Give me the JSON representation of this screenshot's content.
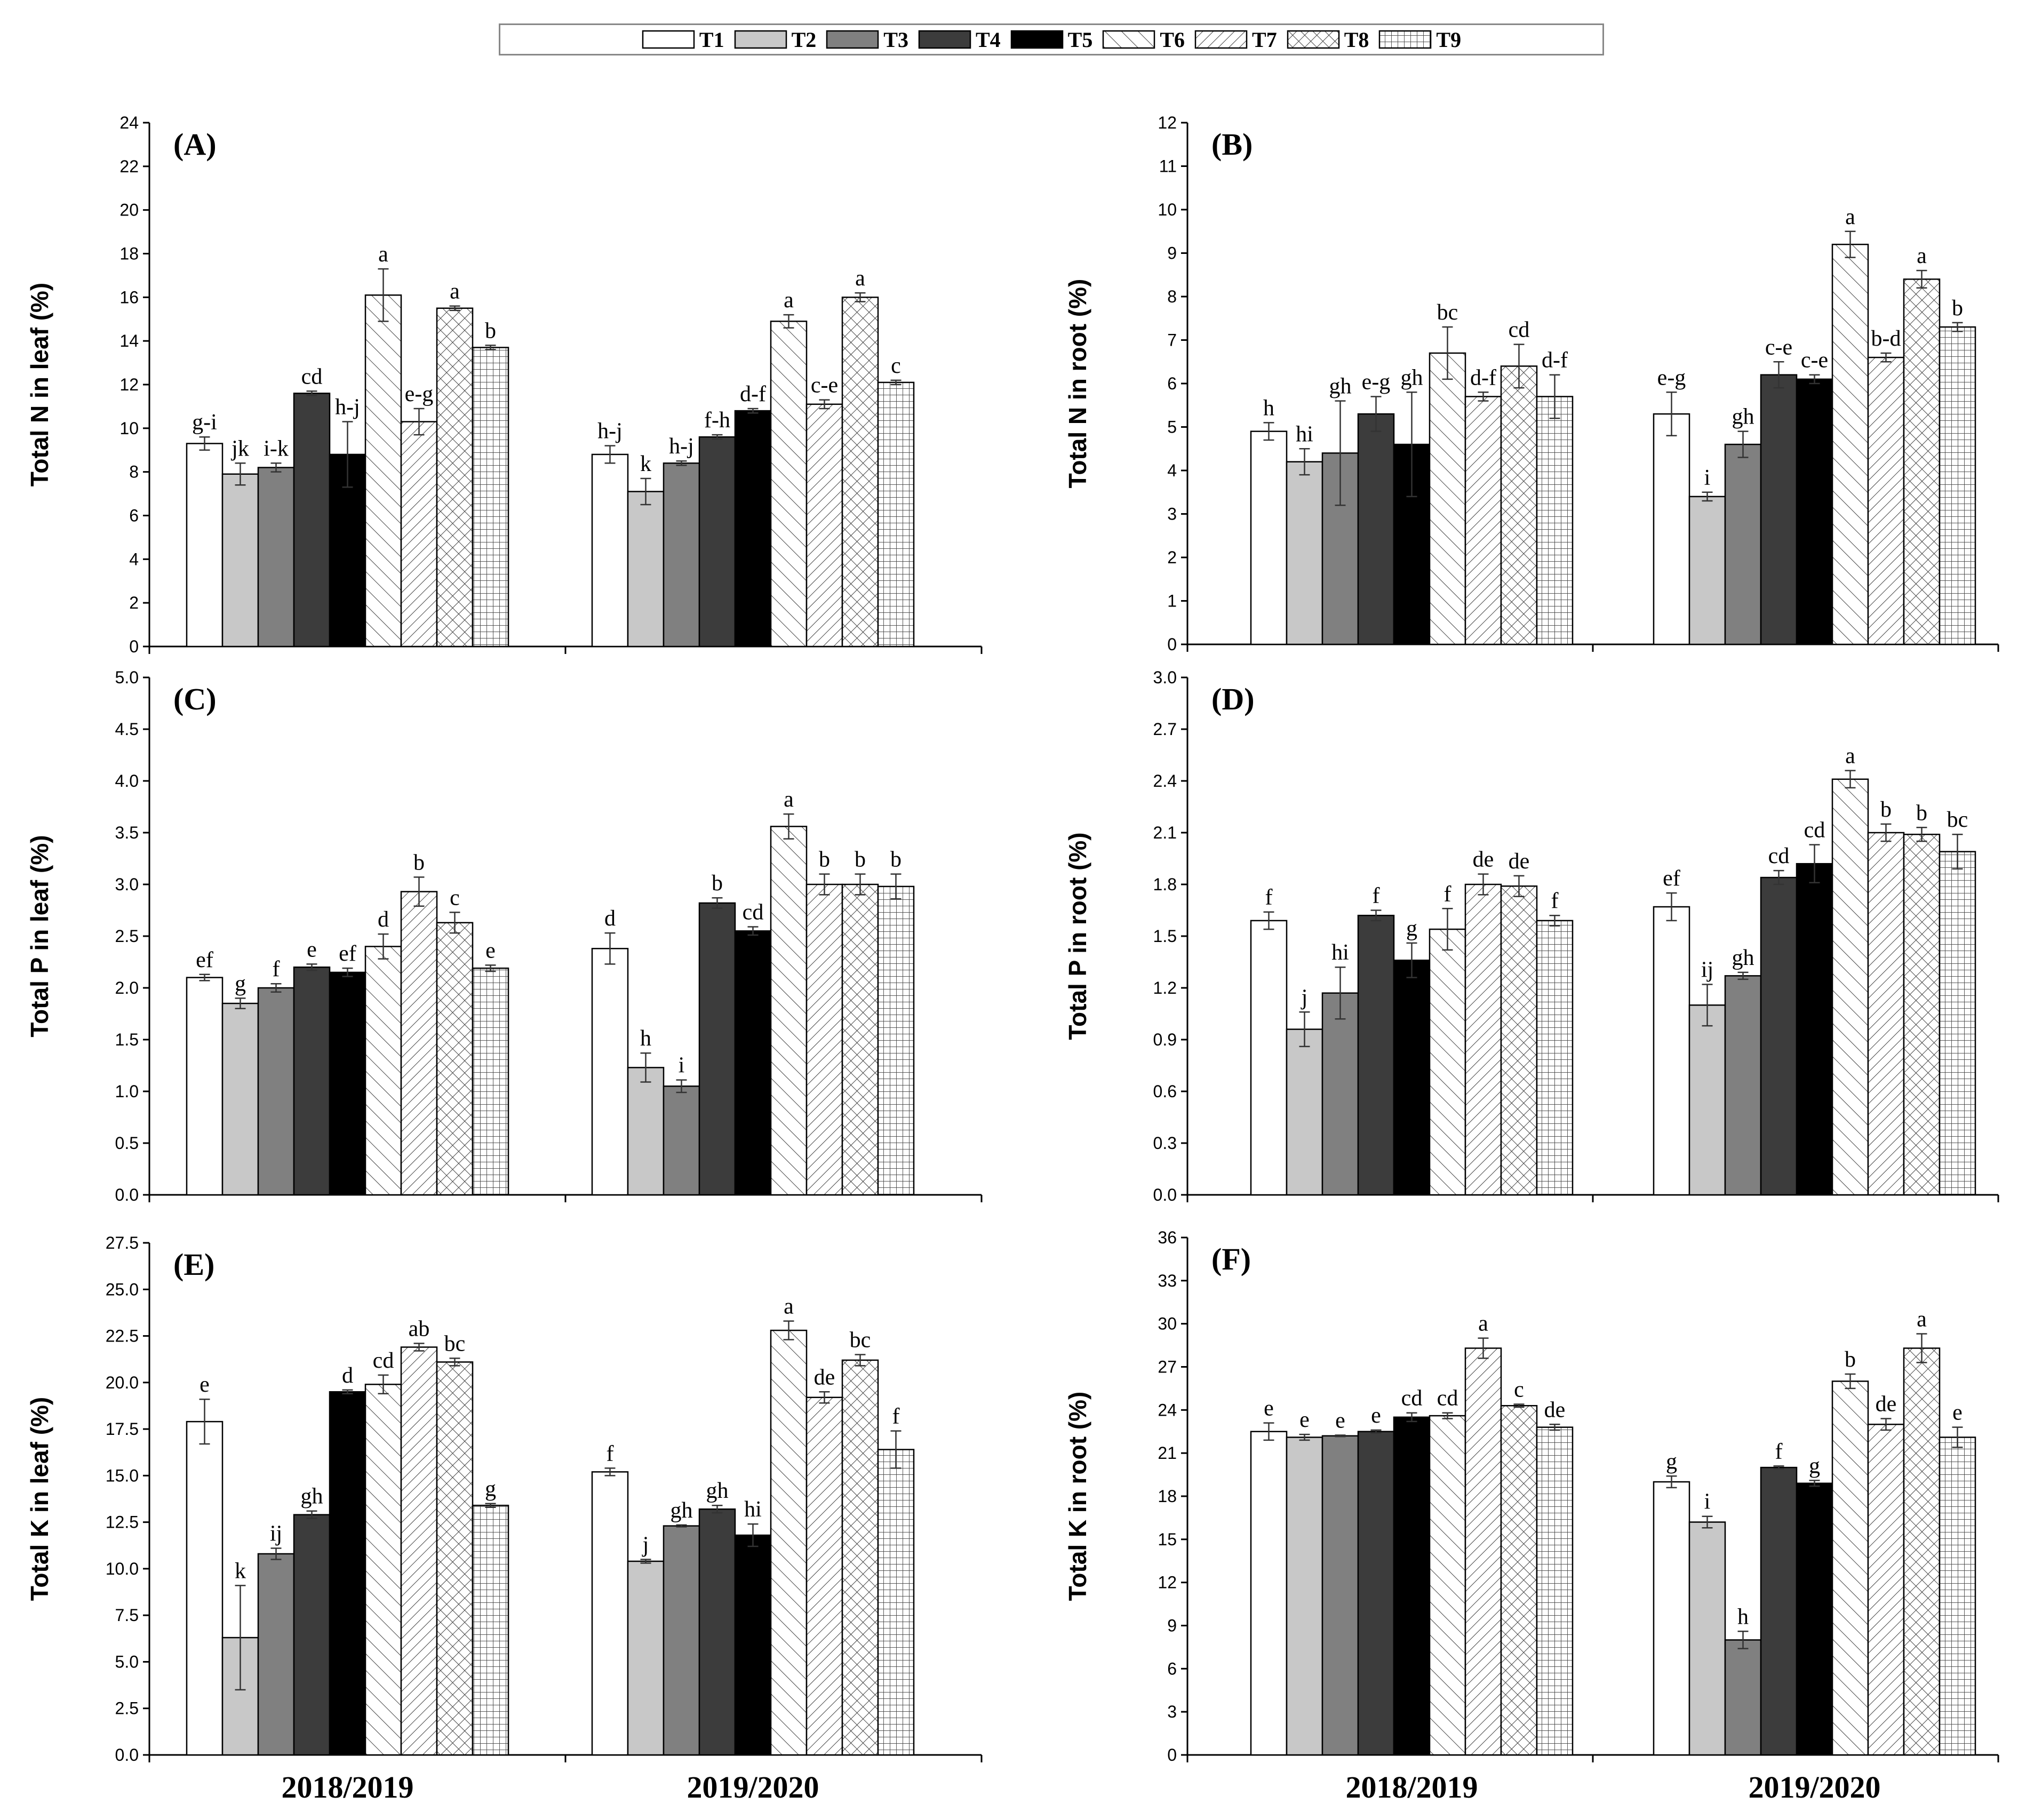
{
  "legend": [
    {
      "label": "T1",
      "pattern": "white"
    },
    {
      "label": "T2",
      "pattern": "lightgray"
    },
    {
      "label": "T3",
      "pattern": "gray"
    },
    {
      "label": "T4",
      "pattern": "darkgray"
    },
    {
      "label": "T5",
      "pattern": "black"
    },
    {
      "label": "T6",
      "pattern": "diag-fwd"
    },
    {
      "label": "T7",
      "pattern": "diag-back"
    },
    {
      "label": "T8",
      "pattern": "crosshatch"
    },
    {
      "label": "T9",
      "pattern": "grid"
    }
  ],
  "colors": {
    "white": "#ffffff",
    "lightgray": "#c8c8c8",
    "gray": "#808080",
    "darkgray": "#3c3c3c",
    "black": "#000000"
  },
  "chart_data": [
    {
      "id": "A",
      "type": "bar",
      "title": "(A)",
      "ylabel": "Total N in leaf (%)",
      "ylim": [
        0,
        24
      ],
      "ytick_step": 2,
      "ytick_decimals": 0,
      "categories": [
        "2018/2019",
        "2019/2020"
      ],
      "show_xlabels": false,
      "series": [
        {
          "name": "T1",
          "values": [
            9.3,
            8.8
          ],
          "errors": [
            0.3,
            0.4
          ],
          "letters": [
            "g-i",
            "h-j"
          ]
        },
        {
          "name": "T2",
          "values": [
            7.9,
            7.1
          ],
          "errors": [
            0.5,
            0.6
          ],
          "letters": [
            "jk",
            "k"
          ]
        },
        {
          "name": "T3",
          "values": [
            8.2,
            8.4
          ],
          "errors": [
            0.2,
            0.1
          ],
          "letters": [
            "i-k",
            "h-j"
          ]
        },
        {
          "name": "T4",
          "values": [
            11.6,
            9.6
          ],
          "errors": [
            0.1,
            0.1
          ],
          "letters": [
            "cd",
            "f-h"
          ]
        },
        {
          "name": "T5",
          "values": [
            8.8,
            10.8
          ],
          "errors": [
            1.5,
            0.1
          ],
          "letters": [
            "h-j",
            "d-f"
          ]
        },
        {
          "name": "T6",
          "values": [
            16.1,
            14.9
          ],
          "errors": [
            1.2,
            0.3
          ],
          "letters": [
            "a",
            "a"
          ]
        },
        {
          "name": "T7",
          "values": [
            10.3,
            11.1
          ],
          "errors": [
            0.6,
            0.2
          ],
          "letters": [
            "e-g",
            "c-e"
          ]
        },
        {
          "name": "T8",
          "values": [
            15.5,
            16.0
          ],
          "errors": [
            0.1,
            0.2
          ],
          "letters": [
            "a",
            "a"
          ]
        },
        {
          "name": "T9",
          "values": [
            13.7,
            12.1
          ],
          "errors": [
            0.1,
            0.1
          ],
          "letters": [
            "b",
            "c"
          ]
        }
      ]
    },
    {
      "id": "B",
      "type": "bar",
      "title": "(B)",
      "ylabel": "Total N in root (%)",
      "ylim": [
        0,
        12
      ],
      "ytick_step": 1,
      "ytick_decimals": 0,
      "categories": [
        "2018/2019",
        "2019/2020"
      ],
      "show_xlabels": false,
      "series": [
        {
          "name": "T1",
          "values": [
            4.9,
            5.3
          ],
          "errors": [
            0.2,
            0.5
          ],
          "letters": [
            "h",
            "e-g"
          ]
        },
        {
          "name": "T2",
          "values": [
            4.2,
            3.4
          ],
          "errors": [
            0.3,
            0.1
          ],
          "letters": [
            "hi",
            "i"
          ]
        },
        {
          "name": "T3",
          "values": [
            4.4,
            4.6
          ],
          "errors": [
            1.2,
            0.3
          ],
          "letters": [
            "gh",
            "gh"
          ]
        },
        {
          "name": "T4",
          "values": [
            5.3,
            6.2
          ],
          "errors": [
            0.4,
            0.3
          ],
          "letters": [
            "e-g",
            "c-e"
          ]
        },
        {
          "name": "T5",
          "values": [
            4.6,
            6.1
          ],
          "errors": [
            1.2,
            0.1
          ],
          "letters": [
            "gh",
            "c-e"
          ]
        },
        {
          "name": "T6",
          "values": [
            6.7,
            9.2
          ],
          "errors": [
            0.6,
            0.3
          ],
          "letters": [
            "bc",
            "a"
          ]
        },
        {
          "name": "T7",
          "values": [
            5.7,
            6.6
          ],
          "errors": [
            0.1,
            0.1
          ],
          "letters": [
            "d-f",
            "b-d"
          ]
        },
        {
          "name": "T8",
          "values": [
            6.4,
            8.4
          ],
          "errors": [
            0.5,
            0.2
          ],
          "letters": [
            "cd",
            "a"
          ]
        },
        {
          "name": "T9",
          "values": [
            5.7,
            7.3
          ],
          "errors": [
            0.5,
            0.1
          ],
          "letters": [
            "d-f",
            "b"
          ]
        }
      ]
    },
    {
      "id": "C",
      "type": "bar",
      "title": "(C)",
      "ylabel": "Total P in leaf (%)",
      "ylim": [
        0,
        5
      ],
      "ytick_step": 0.5,
      "ytick_decimals": 1,
      "categories": [
        "2018/2019",
        "2019/2020"
      ],
      "show_xlabels": false,
      "series": [
        {
          "name": "T1",
          "values": [
            2.1,
            2.38
          ],
          "errors": [
            0.03,
            0.15
          ],
          "letters": [
            "ef",
            "d"
          ]
        },
        {
          "name": "T2",
          "values": [
            1.85,
            1.23
          ],
          "errors": [
            0.05,
            0.14
          ],
          "letters": [
            "g",
            "h"
          ]
        },
        {
          "name": "T3",
          "values": [
            2.0,
            1.05
          ],
          "errors": [
            0.04,
            0.06
          ],
          "letters": [
            "f",
            "i"
          ]
        },
        {
          "name": "T4",
          "values": [
            2.2,
            2.82
          ],
          "errors": [
            0.03,
            0.05
          ],
          "letters": [
            "e",
            "b"
          ]
        },
        {
          "name": "T5",
          "values": [
            2.15,
            2.55
          ],
          "errors": [
            0.04,
            0.04
          ],
          "letters": [
            "ef",
            "cd"
          ]
        },
        {
          "name": "T6",
          "values": [
            2.4,
            3.56
          ],
          "errors": [
            0.12,
            0.12
          ],
          "letters": [
            "d",
            "a"
          ]
        },
        {
          "name": "T7",
          "values": [
            2.93,
            3.0
          ],
          "errors": [
            0.14,
            0.1
          ],
          "letters": [
            "b",
            "b"
          ]
        },
        {
          "name": "T8",
          "values": [
            2.63,
            3.0
          ],
          "errors": [
            0.1,
            0.1
          ],
          "letters": [
            "c",
            "b"
          ]
        },
        {
          "name": "T9",
          "values": [
            2.19,
            2.98
          ],
          "errors": [
            0.03,
            0.12
          ],
          "letters": [
            "e",
            "b"
          ]
        }
      ]
    },
    {
      "id": "D",
      "type": "bar",
      "title": "(D)",
      "ylabel": "Total P in root (%)",
      "ylim": [
        0,
        3
      ],
      "ytick_step": 0.3,
      "ytick_decimals": 1,
      "categories": [
        "2018/2019",
        "2019/2020"
      ],
      "show_xlabels": false,
      "series": [
        {
          "name": "T1",
          "values": [
            1.59,
            1.67
          ],
          "errors": [
            0.05,
            0.08
          ],
          "letters": [
            "f",
            "ef"
          ]
        },
        {
          "name": "T2",
          "values": [
            0.96,
            1.1
          ],
          "errors": [
            0.1,
            0.12
          ],
          "letters": [
            "j",
            "ij"
          ]
        },
        {
          "name": "T3",
          "values": [
            1.17,
            1.27
          ],
          "errors": [
            0.15,
            0.02
          ],
          "letters": [
            "hi",
            "gh"
          ]
        },
        {
          "name": "T4",
          "values": [
            1.62,
            1.84
          ],
          "errors": [
            0.03,
            0.04
          ],
          "letters": [
            "f",
            "cd"
          ]
        },
        {
          "name": "T5",
          "values": [
            1.36,
            1.92
          ],
          "errors": [
            0.1,
            0.11
          ],
          "letters": [
            "g",
            "cd"
          ]
        },
        {
          "name": "T6",
          "values": [
            1.54,
            2.41
          ],
          "errors": [
            0.12,
            0.05
          ],
          "letters": [
            "f",
            "a"
          ]
        },
        {
          "name": "T7",
          "values": [
            1.8,
            2.1
          ],
          "errors": [
            0.06,
            0.05
          ],
          "letters": [
            "de",
            "b"
          ]
        },
        {
          "name": "T8",
          "values": [
            1.79,
            2.09
          ],
          "errors": [
            0.06,
            0.04
          ],
          "letters": [
            "de",
            "b"
          ]
        },
        {
          "name": "T9",
          "values": [
            1.59,
            1.99
          ],
          "errors": [
            0.03,
            0.1
          ],
          "letters": [
            "f",
            "bc"
          ]
        }
      ]
    },
    {
      "id": "E",
      "type": "bar",
      "title": "(E)",
      "ylabel": "Total K in leaf (%)",
      "ylim": [
        0,
        27.5
      ],
      "ytick_step": 2.5,
      "ytick_decimals": 1,
      "categories": [
        "2018/2019",
        "2019/2020"
      ],
      "show_xlabels": true,
      "series": [
        {
          "name": "T1",
          "values": [
            17.9,
            15.2
          ],
          "errors": [
            1.2,
            0.2
          ],
          "letters": [
            "e",
            "f"
          ]
        },
        {
          "name": "T2",
          "values": [
            6.3,
            10.4
          ],
          "errors": [
            2.8,
            0.1
          ],
          "letters": [
            "k",
            "j"
          ]
        },
        {
          "name": "T3",
          "values": [
            10.8,
            12.3
          ],
          "errors": [
            0.3,
            0.05
          ],
          "letters": [
            "ij",
            "gh"
          ]
        },
        {
          "name": "T4",
          "values": [
            12.9,
            13.2
          ],
          "errors": [
            0.2,
            0.2
          ],
          "letters": [
            "gh",
            "gh"
          ]
        },
        {
          "name": "T5",
          "values": [
            19.5,
            11.8
          ],
          "errors": [
            0.1,
            0.6
          ],
          "letters": [
            "d",
            "hi"
          ]
        },
        {
          "name": "T6",
          "values": [
            19.9,
            22.8
          ],
          "errors": [
            0.5,
            0.5
          ],
          "letters": [
            "cd",
            "a"
          ]
        },
        {
          "name": "T7",
          "values": [
            21.9,
            19.2
          ],
          "errors": [
            0.2,
            0.3
          ],
          "letters": [
            "ab",
            "de"
          ]
        },
        {
          "name": "T8",
          "values": [
            21.1,
            21.2
          ],
          "errors": [
            0.2,
            0.3
          ],
          "letters": [
            "bc",
            "bc"
          ]
        },
        {
          "name": "T9",
          "values": [
            13.4,
            16.4
          ],
          "errors": [
            0.1,
            1.0
          ],
          "letters": [
            "g",
            "f"
          ]
        }
      ]
    },
    {
      "id": "F",
      "type": "bar",
      "title": "(F)",
      "ylabel": "Total K in root (%)",
      "ylim": [
        0,
        36
      ],
      "ytick_step": 3,
      "ytick_decimals": 0,
      "categories": [
        "2018/2019",
        "2019/2020"
      ],
      "show_xlabels": true,
      "series": [
        {
          "name": "T1",
          "values": [
            22.5,
            19.0
          ],
          "errors": [
            0.6,
            0.4
          ],
          "letters": [
            "e",
            "g"
          ]
        },
        {
          "name": "T2",
          "values": [
            22.1,
            16.2
          ],
          "errors": [
            0.2,
            0.4
          ],
          "letters": [
            "e",
            "i"
          ]
        },
        {
          "name": "T3",
          "values": [
            22.2,
            8.0
          ],
          "errors": [
            0.05,
            0.6
          ],
          "letters": [
            "e",
            "h"
          ]
        },
        {
          "name": "T4",
          "values": [
            22.5,
            20.0
          ],
          "errors": [
            0.1,
            0.1
          ],
          "letters": [
            "e",
            "f"
          ]
        },
        {
          "name": "T5",
          "values": [
            23.5,
            18.9
          ],
          "errors": [
            0.3,
            0.2
          ],
          "letters": [
            "cd",
            "g"
          ]
        },
        {
          "name": "T6",
          "values": [
            23.6,
            26.0
          ],
          "errors": [
            0.2,
            0.5
          ],
          "letters": [
            "cd",
            "b"
          ]
        },
        {
          "name": "T7",
          "values": [
            28.3,
            23.0
          ],
          "errors": [
            0.7,
            0.4
          ],
          "letters": [
            "a",
            "de"
          ]
        },
        {
          "name": "T8",
          "values": [
            24.3,
            28.3
          ],
          "errors": [
            0.1,
            1.0
          ],
          "letters": [
            "c",
            "a"
          ]
        },
        {
          "name": "T9",
          "values": [
            22.8,
            22.1
          ],
          "errors": [
            0.2,
            0.7
          ],
          "letters": [
            "de",
            "e"
          ]
        }
      ]
    }
  ]
}
